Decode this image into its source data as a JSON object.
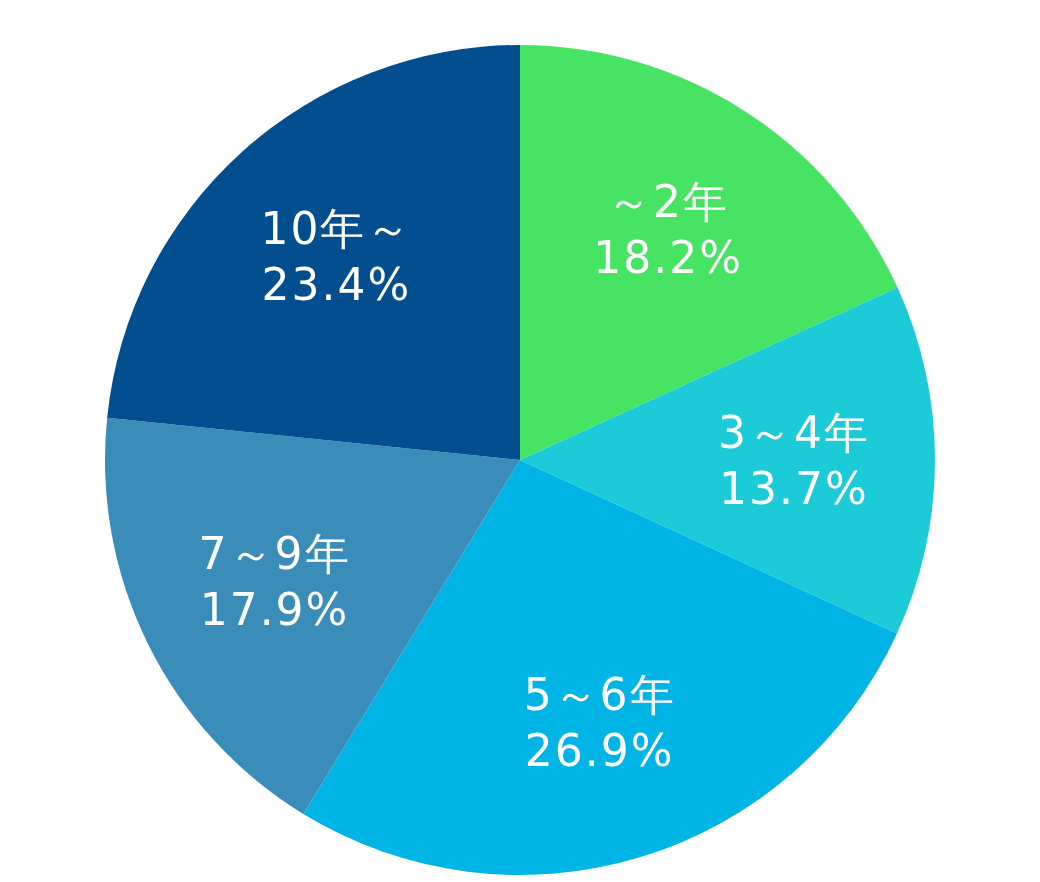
{
  "chart_data": {
    "type": "pie",
    "categories": [
      "～2年",
      "3～4年",
      "5～6年",
      "7～9年",
      "10年～"
    ],
    "values": [
      18.2,
      13.7,
      26.9,
      17.9,
      23.4
    ],
    "value_labels": [
      "18.2%",
      "13.7%",
      "26.9%",
      "17.9%",
      "23.4%"
    ],
    "colors": [
      "#46e462",
      "#1ccbd8",
      "#00b4e6",
      "#3a8cb9",
      "#034e8f"
    ]
  }
}
